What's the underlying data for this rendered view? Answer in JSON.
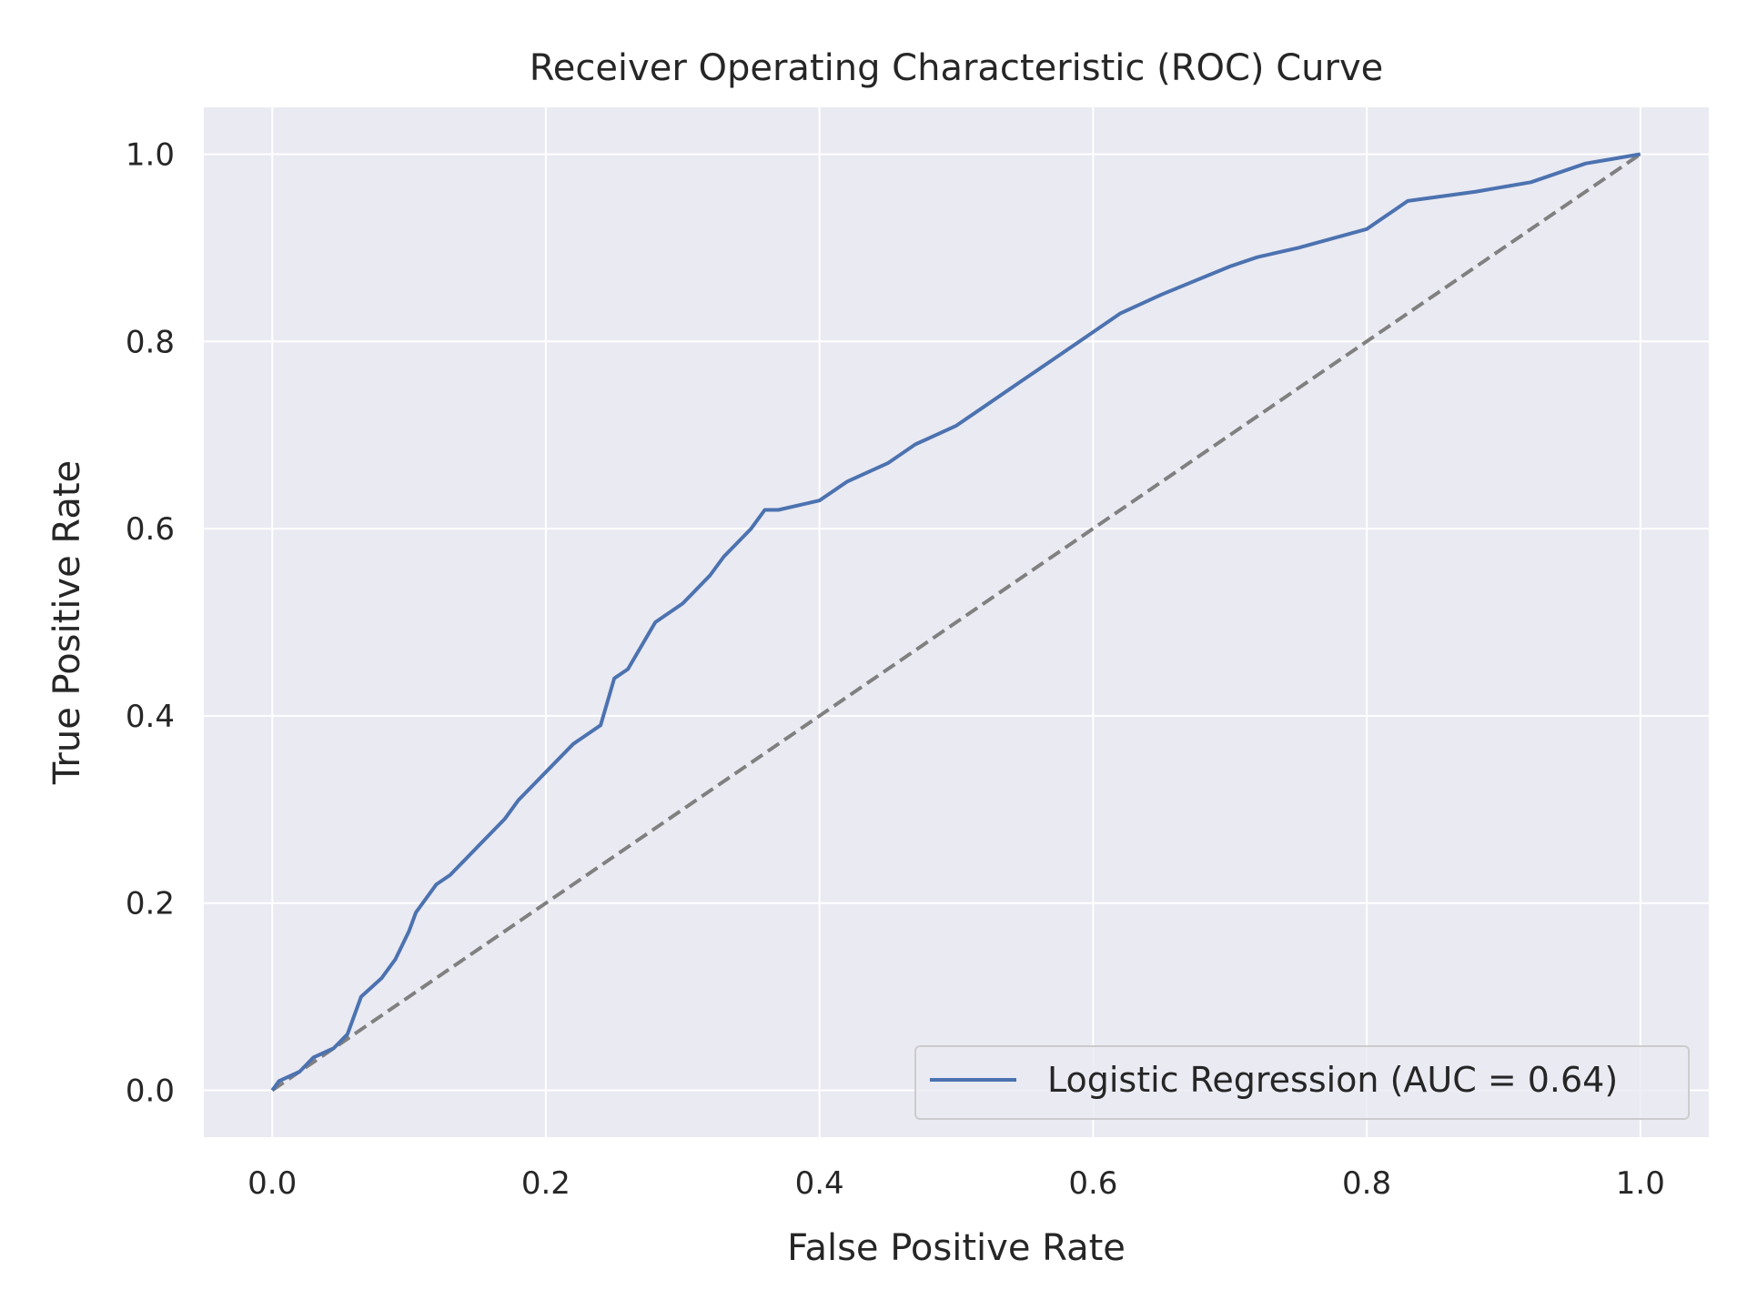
{
  "chart_data": {
    "type": "line",
    "title": "Receiver Operating Characteristic (ROC) Curve",
    "xlabel": "False Positive Rate",
    "ylabel": "True Positive Rate",
    "xlim": [
      -0.05,
      1.05
    ],
    "ylim": [
      -0.05,
      1.05
    ],
    "grid": true,
    "legend_position": "lower right",
    "x_ticks": [
      0.0,
      0.2,
      0.4,
      0.6,
      0.8,
      1.0
    ],
    "x_tick_labels": [
      "0.0",
      "0.2",
      "0.4",
      "0.6",
      "0.8",
      "1.0"
    ],
    "y_ticks": [
      0.0,
      0.2,
      0.4,
      0.6,
      0.8,
      1.0
    ],
    "y_tick_labels": [
      "0.0",
      "0.2",
      "0.4",
      "0.6",
      "0.8",
      "1.0"
    ],
    "series": [
      {
        "name": "Logistic Regression (AUC = 0.64)",
        "color": "#4c72b0",
        "style": "solid",
        "x": [
          0.0,
          0.005,
          0.02,
          0.03,
          0.045,
          0.055,
          0.065,
          0.08,
          0.09,
          0.1,
          0.105,
          0.11,
          0.12,
          0.13,
          0.15,
          0.17,
          0.18,
          0.2,
          0.22,
          0.24,
          0.25,
          0.26,
          0.28,
          0.3,
          0.32,
          0.33,
          0.35,
          0.36,
          0.37,
          0.4,
          0.42,
          0.45,
          0.47,
          0.5,
          0.52,
          0.55,
          0.57,
          0.6,
          0.62,
          0.65,
          0.7,
          0.72,
          0.75,
          0.8,
          0.83,
          0.88,
          0.92,
          0.96,
          1.0
        ],
        "y": [
          0.0,
          0.01,
          0.02,
          0.035,
          0.045,
          0.06,
          0.1,
          0.12,
          0.14,
          0.17,
          0.19,
          0.2,
          0.22,
          0.23,
          0.26,
          0.29,
          0.31,
          0.34,
          0.37,
          0.39,
          0.44,
          0.45,
          0.5,
          0.52,
          0.55,
          0.57,
          0.6,
          0.62,
          0.62,
          0.63,
          0.65,
          0.67,
          0.69,
          0.71,
          0.73,
          0.76,
          0.78,
          0.81,
          0.83,
          0.85,
          0.88,
          0.89,
          0.9,
          0.92,
          0.95,
          0.96,
          0.97,
          0.99,
          1.0
        ]
      },
      {
        "name": "",
        "color": "#808080",
        "style": "dashed",
        "x": [
          0.0,
          1.0
        ],
        "y": [
          0.0,
          1.0
        ]
      }
    ],
    "colors": {
      "plot_background": "#eaeaf2",
      "grid": "#ffffff",
      "text": "#262626"
    }
  }
}
